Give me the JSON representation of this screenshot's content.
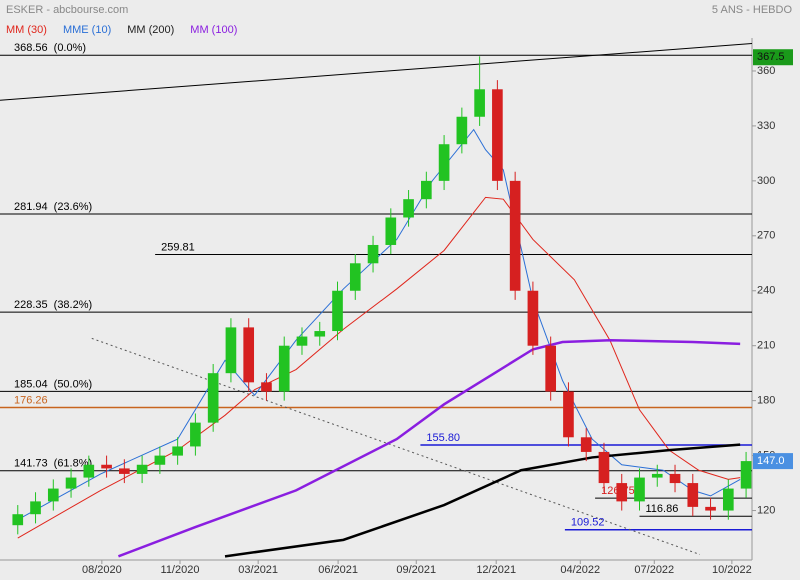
{
  "chart_data": {
    "type": "candlestick",
    "title": "ESKER - abcbourse.com",
    "subtitle": "5 ANS - HEBDO",
    "xlim": [
      -3,
      124
    ],
    "ylim": [
      93,
      378
    ],
    "yticks": [
      120,
      150,
      180,
      210,
      240,
      270,
      300,
      330,
      360
    ],
    "xticks": [
      {
        "value": 14.2,
        "label": "08/2020"
      },
      {
        "value": 27.4,
        "label": "11/2020"
      },
      {
        "value": 40.6,
        "label": "03/2021"
      },
      {
        "value": 54.1,
        "label": "06/2021"
      },
      {
        "value": 67.3,
        "label": "09/2021"
      },
      {
        "value": 80.8,
        "label": "12/2021"
      },
      {
        "value": 95,
        "label": "04/2022"
      },
      {
        "value": 107.5,
        "label": "07/2022"
      },
      {
        "value": 120.6,
        "label": "10/2022"
      }
    ],
    "up_color": "#22c322",
    "down_color": "#d62020",
    "candles": {
      "x": [
        0,
        3,
        6,
        9,
        12,
        15,
        18,
        21,
        24,
        27,
        30,
        33,
        36,
        39,
        42,
        45,
        48,
        51,
        54,
        57,
        60,
        63,
        66,
        69,
        72,
        75,
        78,
        81,
        84,
        87,
        90,
        93,
        96,
        99,
        102,
        105,
        108,
        111,
        114,
        117,
        120,
        123
      ],
      "open": [
        112,
        118,
        125,
        132,
        138,
        145,
        143,
        140,
        145,
        150,
        155,
        168,
        195,
        220,
        190,
        185,
        210,
        215,
        218,
        240,
        255,
        265,
        280,
        290,
        300,
        320,
        335,
        350,
        300,
        240,
        210,
        185,
        160,
        152,
        135,
        125,
        138,
        140,
        135,
        122,
        120,
        132
      ],
      "high": [
        123,
        130,
        137,
        143,
        150,
        150,
        148,
        150,
        155,
        160,
        173,
        200,
        225,
        225,
        195,
        215,
        220,
        223,
        245,
        260,
        270,
        285,
        295,
        305,
        325,
        340,
        368,
        355,
        305,
        245,
        215,
        190,
        165,
        157,
        140,
        143,
        145,
        145,
        140,
        127,
        137,
        152
      ],
      "low": [
        107,
        113,
        120,
        127,
        133,
        138,
        135,
        135,
        140,
        145,
        150,
        163,
        190,
        185,
        180,
        180,
        205,
        210,
        213,
        235,
        250,
        260,
        275,
        285,
        295,
        315,
        330,
        295,
        235,
        205,
        180,
        155,
        147,
        130,
        120,
        120,
        133,
        130,
        117,
        115,
        115,
        127
      ],
      "close": [
        118,
        125,
        132,
        138,
        145,
        143,
        140,
        145,
        150,
        155,
        168,
        195,
        220,
        190,
        185,
        210,
        215,
        218,
        240,
        255,
        265,
        280,
        290,
        300,
        320,
        335,
        350,
        300,
        240,
        210,
        185,
        160,
        152,
        135,
        125,
        138,
        140,
        135,
        122,
        120,
        132,
        147
      ]
    },
    "series": [
      {
        "name": "MM (30)",
        "color": "#e0261c",
        "x": [
          0,
          14,
          27,
          35,
          40,
          47,
          55,
          64,
          72,
          79,
          82,
          87,
          94,
          100,
          105,
          110,
          115,
          120,
          122
        ],
        "values": [
          105,
          131,
          153,
          172,
          186,
          197,
          219,
          241,
          262,
          291,
          290,
          268,
          246,
          213,
          175,
          153,
          142,
          137,
          138
        ]
      },
      {
        "name": "MME (10)",
        "color": "#2a6fd6",
        "x": [
          0,
          14,
          27,
          35,
          40,
          47,
          55,
          64,
          70,
          77,
          79,
          82,
          87,
          92,
          97,
          102,
          109,
          114,
          117,
          122
        ],
        "values": [
          115,
          140,
          159,
          202,
          183,
          213,
          241,
          268,
          300,
          328,
          317,
          306,
          235,
          191,
          159,
          145,
          142,
          131,
          128,
          137
        ]
      },
      {
        "name": "MM (200)",
        "color": "#000000",
        "x": [
          35,
          55,
          72,
          85,
          97,
          110,
          122
        ],
        "values": [
          95,
          104,
          123,
          142,
          149,
          153,
          156
        ]
      },
      {
        "name": "MM (100)",
        "color": "#8a1ee0",
        "x": [
          17,
          30,
          47,
          64,
          72,
          80,
          87,
          92,
          100,
          114,
          122
        ],
        "values": [
          95,
          111,
          131,
          159,
          178,
          194,
          208,
          212,
          213,
          212,
          211
        ]
      }
    ],
    "hlines": [
      {
        "value": 368.56,
        "pct": "(0.0%)",
        "color": "#000000",
        "start": -3
      },
      {
        "value": 281.94,
        "pct": "(23.6%)",
        "color": "#000000",
        "start": -3
      },
      {
        "value": 259.81,
        "color": "#000000",
        "start": 23.2
      },
      {
        "value": 228.35,
        "pct": "(38.2%)",
        "color": "#000000",
        "start": -3
      },
      {
        "value": 185.04,
        "pct": "(50.0%)",
        "color": "#000000",
        "start": -3
      },
      {
        "value": 176.26,
        "color": "#c8641e",
        "start": -3
      },
      {
        "value": 155.8,
        "label": "155.80",
        "color": "#1a1ad6",
        "start": 68
      },
      {
        "value": 141.73,
        "pct": "(61.8%)",
        "color": "#000000",
        "start": -3
      },
      {
        "value": 126.75,
        "color": "#000000",
        "label_color": "#d62020",
        "start": 97.5
      },
      {
        "value": 116.86,
        "color": "#000000",
        "start": 105
      },
      {
        "value": 109.52,
        "color": "#1a1ad6",
        "start": 92.4
      }
    ],
    "trendlines": [
      {
        "color": "#000000",
        "style": "solid",
        "x": [
          -3,
          124
        ],
        "values": [
          344,
          375
        ]
      },
      {
        "color": "#555555",
        "style": "dotted",
        "x": [
          12.5,
          115.2
        ],
        "values": [
          214,
          96
        ]
      }
    ],
    "last_price": {
      "value": 147,
      "label": "147.0",
      "color": "#4a90e2"
    },
    "high_tag": {
      "value": 367.5,
      "color": "#1a9a1a"
    }
  }
}
